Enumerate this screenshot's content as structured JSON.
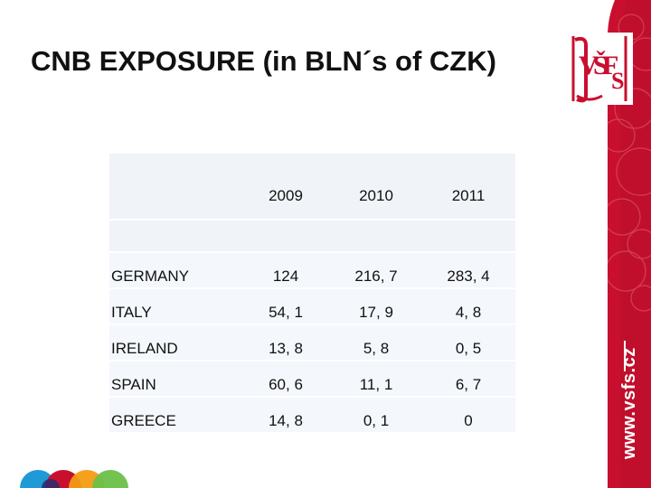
{
  "slide": {
    "title": "CNB EXPOSURE (in BLN´s of CZK)",
    "website": "www.vsfs.cz",
    "brand_color": "#c8102e"
  },
  "table": {
    "headers": [
      "",
      "2009",
      "2010",
      "2011"
    ],
    "rows": [
      {
        "country": "GERMANY",
        "values": [
          "124",
          "216, 7",
          "283, 4"
        ]
      },
      {
        "country": "ITALY",
        "values": [
          "54, 1",
          "17, 9",
          "4, 8"
        ]
      },
      {
        "country": "IRELAND",
        "values": [
          "13, 8",
          "5, 8",
          "0, 5"
        ]
      },
      {
        "country": "SPAIN",
        "values": [
          "60, 6",
          "11, 1",
          "6, 7"
        ]
      },
      {
        "country": "GREECE",
        "values": [
          "14, 8",
          "0, 1",
          "0"
        ]
      }
    ]
  },
  "logo": {
    "letters": "VŠFS",
    "icon": "vsfs-logo-icon"
  }
}
